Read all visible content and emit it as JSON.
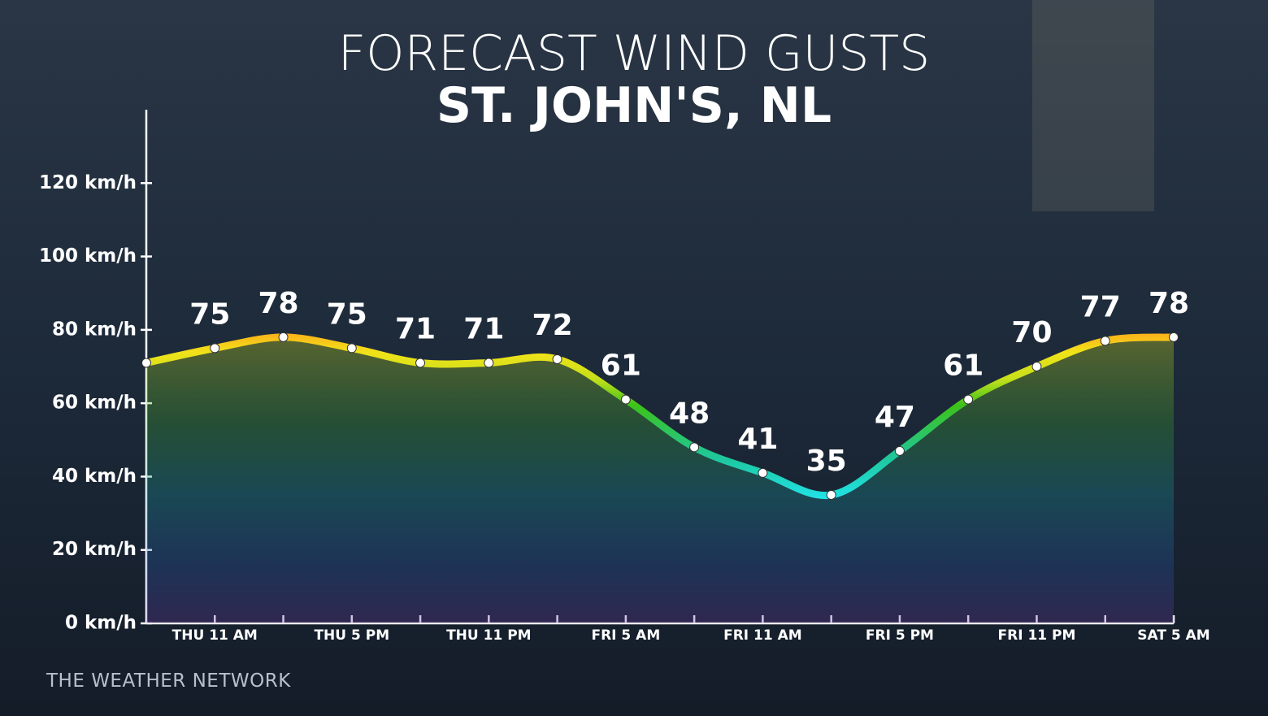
{
  "chart_data": {
    "type": "line",
    "title": "FORECAST WIND GUSTS",
    "subtitle": "ST. JOHN'S, NL",
    "source": "THE WEATHER NETWORK",
    "categories": [
      null,
      "THU 11 AM",
      null,
      "THU 5 PM",
      null,
      "THU 11 PM",
      null,
      "FRI 5 AM",
      null,
      "FRI 11 AM",
      null,
      "FRI 5 PM",
      null,
      "FRI 11 PM",
      null,
      "SAT 5 AM"
    ],
    "values": [
      71,
      75,
      78,
      75,
      71,
      71,
      72,
      61,
      48,
      41,
      35,
      47,
      61,
      70,
      77,
      78
    ],
    "value_labels": [
      null,
      "75",
      "78",
      "75",
      "71",
      "71",
      "72",
      "61",
      "48",
      "41",
      "35",
      "47",
      "61",
      "70",
      "77",
      "78"
    ],
    "ylim": [
      0,
      140
    ],
    "yticks": [
      {
        "value": 0,
        "label": "0 km/h"
      },
      {
        "value": 20,
        "label": "20 km/h"
      },
      {
        "value": 40,
        "label": "40 km/h"
      },
      {
        "value": 60,
        "label": "60 km/h"
      },
      {
        "value": 80,
        "label": "80 km/h"
      },
      {
        "value": 100,
        "label": "100 km/h"
      },
      {
        "value": 120,
        "label": "120 km/h"
      }
    ],
    "grid": false
  }
}
